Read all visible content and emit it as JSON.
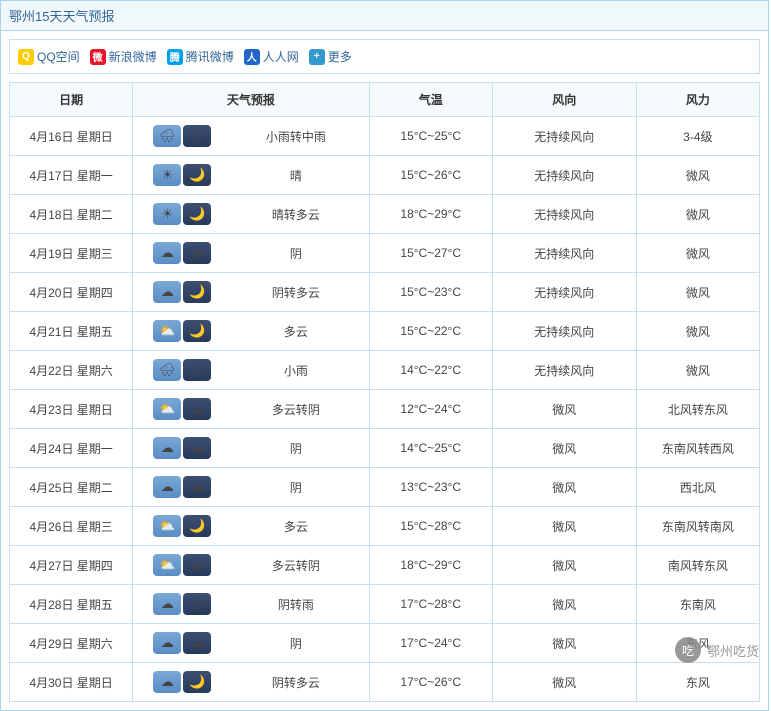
{
  "title": "鄂州15天天气预报",
  "share": [
    {
      "key": "qzone",
      "label": "QQ空间",
      "ico_class": "ico-qz",
      "glyph": "Q"
    },
    {
      "key": "sina",
      "label": "新浪微博",
      "ico_class": "ico-wb",
      "glyph": "微"
    },
    {
      "key": "tencent",
      "label": "腾讯微博",
      "ico_class": "ico-tx",
      "glyph": "腾"
    },
    {
      "key": "renren",
      "label": "人人网",
      "ico_class": "ico-rr",
      "glyph": "人"
    },
    {
      "key": "more",
      "label": "更多",
      "ico_class": "ico-more",
      "glyph": "+"
    }
  ],
  "columns": {
    "date": "日期",
    "forecast": "天气预报",
    "temp": "气温",
    "wind_dir": "风向",
    "wind_force": "风力"
  },
  "icon_glyphs": {
    "rain": "🌧",
    "sun": "☀",
    "moon": "🌙",
    "cloud": "☁",
    "partly": "⛅",
    "night-cloud": "☁",
    "night-partly": "🌙"
  },
  "rows": [
    {
      "date": "4月16日 星期日",
      "day_icon": "rain",
      "night_icon": "rain",
      "forecast": "小雨转中雨",
      "temp": "15°C~25°C",
      "wind_dir": "无持续风向",
      "wind_force": "3-4级"
    },
    {
      "date": "4月17日 星期一",
      "day_icon": "sun",
      "night_icon": "moon",
      "forecast": "晴",
      "temp": "15°C~26°C",
      "wind_dir": "无持续风向",
      "wind_force": "微风"
    },
    {
      "date": "4月18日 星期二",
      "day_icon": "sun",
      "night_icon": "night-partly",
      "forecast": "晴转多云",
      "temp": "18°C~29°C",
      "wind_dir": "无持续风向",
      "wind_force": "微风"
    },
    {
      "date": "4月19日 星期三",
      "day_icon": "cloud",
      "night_icon": "night-cloud",
      "forecast": "阴",
      "temp": "15°C~27°C",
      "wind_dir": "无持续风向",
      "wind_force": "微风"
    },
    {
      "date": "4月20日 星期四",
      "day_icon": "cloud",
      "night_icon": "night-partly",
      "forecast": "阴转多云",
      "temp": "15°C~23°C",
      "wind_dir": "无持续风向",
      "wind_force": "微风"
    },
    {
      "date": "4月21日 星期五",
      "day_icon": "partly",
      "night_icon": "night-partly",
      "forecast": "多云",
      "temp": "15°C~22°C",
      "wind_dir": "无持续风向",
      "wind_force": "微风"
    },
    {
      "date": "4月22日 星期六",
      "day_icon": "rain",
      "night_icon": "rain",
      "forecast": "小雨",
      "temp": "14°C~22°C",
      "wind_dir": "无持续风向",
      "wind_force": "微风"
    },
    {
      "date": "4月23日 星期日",
      "day_icon": "partly",
      "night_icon": "night-cloud",
      "forecast": "多云转阴",
      "temp": "12°C~24°C",
      "wind_dir": "微风",
      "wind_force": "北风转东风"
    },
    {
      "date": "4月24日 星期一",
      "day_icon": "cloud",
      "night_icon": "night-cloud",
      "forecast": "阴",
      "temp": "14°C~25°C",
      "wind_dir": "微风",
      "wind_force": "东南风转西风"
    },
    {
      "date": "4月25日 星期二",
      "day_icon": "cloud",
      "night_icon": "night-cloud",
      "forecast": "阴",
      "temp": "13°C~23°C",
      "wind_dir": "微风",
      "wind_force": "西北风"
    },
    {
      "date": "4月26日 星期三",
      "day_icon": "partly",
      "night_icon": "night-partly",
      "forecast": "多云",
      "temp": "15°C~28°C",
      "wind_dir": "微风",
      "wind_force": "东南风转南风"
    },
    {
      "date": "4月27日 星期四",
      "day_icon": "partly",
      "night_icon": "night-cloud",
      "forecast": "多云转阴",
      "temp": "18°C~29°C",
      "wind_dir": "微风",
      "wind_force": "南风转东风"
    },
    {
      "date": "4月28日 星期五",
      "day_icon": "cloud",
      "night_icon": "rain",
      "forecast": "阴转雨",
      "temp": "17°C~28°C",
      "wind_dir": "微风",
      "wind_force": "东南风"
    },
    {
      "date": "4月29日 星期六",
      "day_icon": "cloud",
      "night_icon": "night-cloud",
      "forecast": "阴",
      "temp": "17°C~24°C",
      "wind_dir": "微风",
      "wind_force": "东风"
    },
    {
      "date": "4月30日 星期日",
      "day_icon": "cloud",
      "night_icon": "night-partly",
      "forecast": "阴转多云",
      "temp": "17°C~26°C",
      "wind_dir": "微风",
      "wind_force": "东风"
    }
  ],
  "watermark": {
    "name": "鄂州吃货",
    "glyph": "吃"
  },
  "colors": {
    "border": "#a8d4e8",
    "cell_border": "#c8e0ee",
    "header_bg": "#f5fafd",
    "title_bg": "#f0f8fc",
    "link": "#336699"
  }
}
